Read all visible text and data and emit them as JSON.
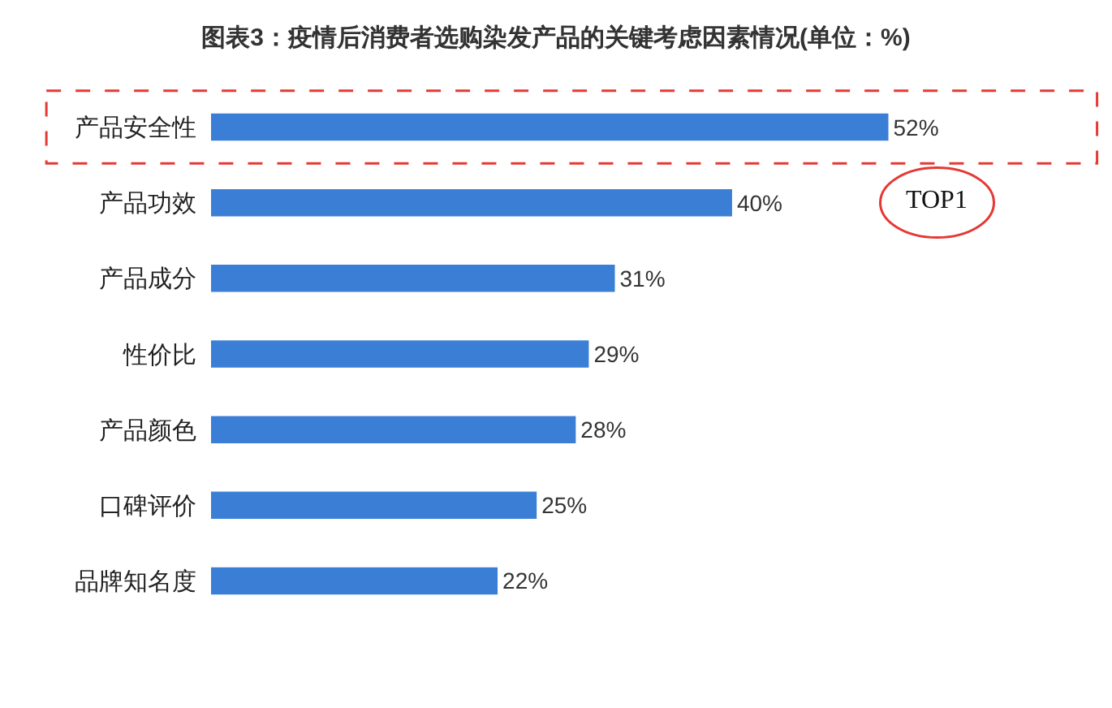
{
  "chart_data": {
    "type": "bar",
    "orientation": "horizontal",
    "title": "图表3：疫情后消费者选购染发产品的关键考虑因素情况(单位：%)",
    "categories": [
      "产品安全性",
      "产品功效",
      "产品成分",
      "性价比",
      "产品颜色",
      "口碑评价",
      "品牌知名度"
    ],
    "values": [
      52,
      40,
      31,
      29,
      28,
      25,
      22
    ],
    "value_labels": [
      "52%",
      "40%",
      "31%",
      "29%",
      "28%",
      "25%",
      "22%"
    ],
    "color": "#3a7fd5",
    "annotations": [
      {
        "text": "TOP1",
        "x": 52,
        "y": "产品安全性"
      }
    ],
    "grid": false,
    "legend": false
  }
}
